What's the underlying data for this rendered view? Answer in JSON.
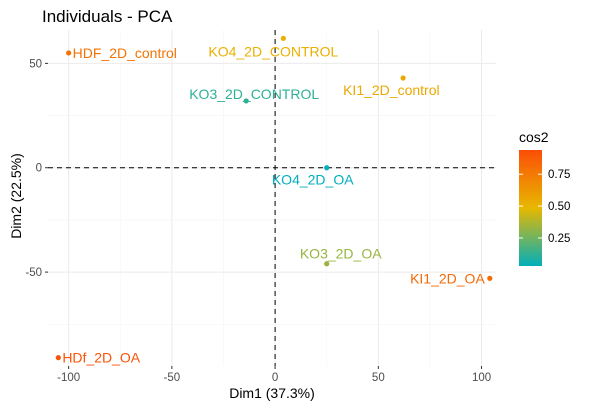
{
  "chart_data": {
    "type": "scatter",
    "title": "Individuals - PCA",
    "xlabel": "Dim1 (37.3%)",
    "ylabel": "Dim2 (22.5%)",
    "xlim": [
      -110,
      107
    ],
    "ylim": [
      -95,
      66
    ],
    "x_ticks": [
      -100,
      -50,
      0,
      50,
      100
    ],
    "x_tick_labels": [
      "-100",
      "-50",
      "0",
      "50",
      "100"
    ],
    "y_ticks": [
      -50,
      0,
      50
    ],
    "y_tick_labels": [
      "-50",
      "0",
      "50"
    ],
    "grid": true,
    "reference_lines": {
      "x": 0,
      "y": 0
    },
    "points": [
      {
        "label": "HDF_2D_control",
        "x": -100,
        "y": 55,
        "cos2": 0.78
      },
      {
        "label": "KO4_2D_CONTROL",
        "x": 4,
        "y": 62,
        "cos2": 0.52
      },
      {
        "label": "KI1_2D_control",
        "x": 62,
        "y": 43,
        "cos2": 0.55
      },
      {
        "label": "KO3_2D_CONTROL",
        "x": -14,
        "y": 32,
        "cos2": 0.12
      },
      {
        "label": "KO4_2D_OA",
        "x": 25,
        "y": 0,
        "cos2": 0.03
      },
      {
        "label": "KO3_2D_OA",
        "x": 25,
        "y": -46,
        "cos2": 0.33
      },
      {
        "label": "KI1_2D_OA",
        "x": 104,
        "y": -53,
        "cos2": 0.82
      },
      {
        "label": "HDf_2D_OA",
        "x": -105,
        "y": -91,
        "cos2": 0.92
      }
    ],
    "legend": {
      "title": "cos2",
      "position": "right",
      "range": [
        0.03,
        0.94
      ],
      "ticks": [
        0.25,
        0.5,
        0.75
      ],
      "tick_labels": [
        "0.25",
        "0.50",
        "0.75"
      ],
      "gradient_colors": [
        "#00AFBB",
        "#E7B800",
        "#FC4E07"
      ]
    }
  }
}
